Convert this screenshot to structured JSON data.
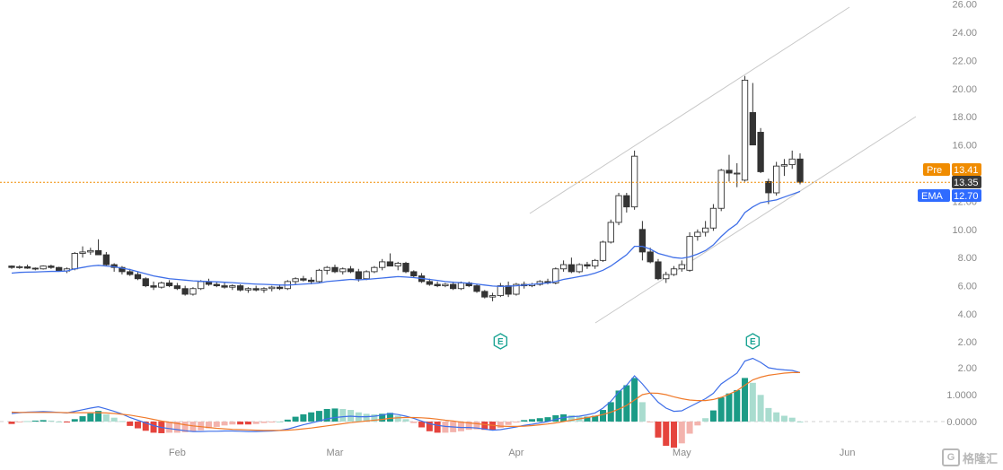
{
  "watermark": {
    "logo": "G",
    "text": "格隆汇"
  },
  "tags": {
    "pre": {
      "label": "Pre",
      "value": "13.41",
      "color": "#f08c00"
    },
    "last": {
      "value": "13.35",
      "color": "#3a3a3a"
    },
    "ema": {
      "label": "EMA",
      "value": "12.70",
      "color": "#2f6bff"
    }
  },
  "chart_data": [
    {
      "type": "candlestick",
      "title": "",
      "ylim": [
        2,
        26
      ],
      "y_ticks": [
        "4.00",
        "6.00",
        "8.00",
        "10.00",
        "12.00",
        "14.00",
        "16.00",
        "18.00",
        "20.00",
        "22.00",
        "24.00",
        "26.00"
      ],
      "x_ticks": [
        {
          "label": "Feb",
          "index": 21
        },
        {
          "label": "Mar",
          "index": 41
        },
        {
          "label": "Apr",
          "index": 64
        },
        {
          "label": "May",
          "index": 85
        },
        {
          "label": "Jun",
          "index": 106
        }
      ],
      "price_line": 13.35,
      "earnings_markers": [
        {
          "index": 62,
          "label": "E"
        },
        {
          "index": 94,
          "label": "E"
        }
      ],
      "ohlc": [
        [
          7.4,
          7.45,
          7.2,
          7.3
        ],
        [
          7.3,
          7.45,
          7.2,
          7.35
        ],
        [
          7.35,
          7.5,
          7.2,
          7.25
        ],
        [
          7.25,
          7.3,
          7.1,
          7.2
        ],
        [
          7.2,
          7.45,
          7.15,
          7.4
        ],
        [
          7.4,
          7.5,
          7.2,
          7.3
        ],
        [
          7.3,
          7.35,
          7.0,
          7.05
        ],
        [
          7.05,
          7.3,
          6.9,
          7.2
        ],
        [
          7.2,
          8.4,
          7.1,
          8.3
        ],
        [
          8.3,
          8.8,
          8.0,
          8.4
        ],
        [
          8.4,
          8.7,
          8.2,
          8.5
        ],
        [
          8.5,
          9.3,
          8.3,
          8.2
        ],
        [
          8.2,
          8.4,
          7.4,
          7.5
        ],
        [
          7.5,
          7.6,
          7.0,
          7.3
        ],
        [
          7.3,
          7.4,
          6.8,
          7.0
        ],
        [
          7.0,
          7.2,
          6.7,
          6.8
        ],
        [
          6.8,
          7.0,
          6.4,
          6.5
        ],
        [
          6.5,
          6.6,
          5.9,
          6.0
        ],
        [
          6.0,
          6.3,
          5.7,
          5.9
        ],
        [
          5.9,
          6.3,
          5.8,
          6.2
        ],
        [
          6.2,
          6.4,
          5.9,
          6.0
        ],
        [
          6.0,
          6.2,
          5.7,
          5.8
        ],
        [
          5.8,
          6.0,
          5.3,
          5.4
        ],
        [
          5.4,
          5.9,
          5.3,
          5.8
        ],
        [
          5.8,
          6.4,
          5.7,
          6.3
        ],
        [
          6.3,
          6.5,
          6.0,
          6.1
        ],
        [
          6.1,
          6.3,
          5.9,
          6.0
        ],
        [
          6.0,
          6.2,
          5.8,
          5.9
        ],
        [
          5.9,
          6.1,
          5.7,
          6.0
        ],
        [
          6.0,
          6.1,
          5.6,
          5.7
        ],
        [
          5.7,
          5.9,
          5.5,
          5.8
        ],
        [
          5.8,
          6.0,
          5.6,
          5.7
        ],
        [
          5.7,
          5.9,
          5.5,
          5.8
        ],
        [
          5.8,
          6.0,
          5.6,
          5.9
        ],
        [
          5.9,
          6.1,
          5.7,
          5.8
        ],
        [
          5.8,
          6.4,
          5.7,
          6.3
        ],
        [
          6.3,
          6.6,
          6.1,
          6.5
        ],
        [
          6.5,
          6.7,
          6.3,
          6.4
        ],
        [
          6.4,
          6.6,
          6.1,
          6.3
        ],
        [
          6.3,
          7.2,
          6.2,
          7.1
        ],
        [
          7.1,
          7.4,
          6.8,
          7.3
        ],
        [
          7.3,
          7.5,
          6.9,
          7.0
        ],
        [
          7.0,
          7.3,
          6.8,
          7.2
        ],
        [
          7.2,
          7.4,
          6.9,
          7.0
        ],
        [
          7.0,
          7.2,
          6.3,
          6.5
        ],
        [
          6.5,
          7.1,
          6.4,
          7.0
        ],
        [
          7.0,
          7.4,
          6.9,
          7.3
        ],
        [
          7.3,
          7.9,
          7.1,
          7.7
        ],
        [
          7.7,
          8.3,
          7.5,
          7.4
        ],
        [
          7.4,
          7.7,
          7.1,
          7.6
        ],
        [
          7.6,
          7.7,
          6.9,
          7.0
        ],
        [
          7.0,
          7.1,
          6.6,
          6.7
        ],
        [
          6.7,
          6.9,
          6.2,
          6.3
        ],
        [
          6.3,
          6.5,
          6.0,
          6.1
        ],
        [
          6.1,
          6.3,
          5.9,
          6.0
        ],
        [
          6.0,
          6.2,
          5.9,
          6.1
        ],
        [
          6.1,
          6.3,
          5.7,
          5.8
        ],
        [
          5.8,
          6.3,
          5.7,
          6.2
        ],
        [
          6.2,
          6.3,
          5.9,
          6.0
        ],
        [
          6.0,
          6.1,
          5.5,
          5.6
        ],
        [
          5.6,
          5.7,
          5.1,
          5.2
        ],
        [
          5.2,
          5.5,
          4.9,
          5.3
        ],
        [
          5.3,
          6.2,
          5.2,
          6.0
        ],
        [
          6.0,
          6.3,
          5.2,
          5.4
        ],
        [
          5.4,
          6.2,
          5.3,
          6.1
        ],
        [
          6.1,
          6.3,
          5.8,
          6.0
        ],
        [
          6.0,
          6.2,
          5.9,
          6.1
        ],
        [
          6.1,
          6.4,
          6.0,
          6.3
        ],
        [
          6.3,
          6.5,
          6.1,
          6.2
        ],
        [
          6.2,
          7.3,
          6.1,
          7.2
        ],
        [
          7.2,
          7.8,
          7.0,
          7.5
        ],
        [
          7.5,
          8.0,
          6.9,
          7.0
        ],
        [
          7.0,
          7.6,
          6.9,
          7.5
        ],
        [
          7.5,
          7.7,
          7.2,
          7.4
        ],
        [
          7.4,
          7.9,
          7.2,
          7.8
        ],
        [
          7.8,
          9.2,
          7.7,
          9.1
        ],
        [
          9.1,
          10.7,
          9.0,
          10.5
        ],
        [
          10.5,
          12.6,
          10.3,
          12.4
        ],
        [
          12.4,
          12.6,
          11.2,
          11.6
        ],
        [
          11.6,
          15.6,
          11.4,
          15.2
        ],
        [
          10.0,
          10.6,
          7.8,
          8.4
        ],
        [
          8.4,
          8.7,
          7.6,
          7.7
        ],
        [
          7.7,
          7.9,
          6.4,
          6.5
        ],
        [
          6.5,
          7.0,
          6.2,
          6.8
        ],
        [
          6.8,
          7.4,
          6.7,
          7.2
        ],
        [
          7.2,
          7.8,
          7.0,
          7.5
        ],
        [
          7.1,
          9.8,
          7.0,
          9.5
        ],
        [
          9.5,
          10.0,
          9.2,
          9.8
        ],
        [
          9.8,
          10.6,
          9.5,
          10.1
        ],
        [
          10.1,
          11.8,
          9.9,
          11.5
        ],
        [
          11.5,
          14.3,
          11.3,
          14.2
        ],
        [
          14.2,
          15.3,
          13.4,
          14.0
        ],
        [
          14.0,
          14.7,
          13.0,
          14.0
        ],
        [
          13.5,
          20.9,
          13.4,
          20.6
        ],
        [
          18.3,
          20.4,
          16.0,
          16.0
        ],
        [
          16.9,
          17.2,
          14.0,
          14.1
        ],
        [
          13.4,
          13.6,
          11.8,
          12.6
        ],
        [
          12.6,
          14.8,
          12.4,
          14.5
        ],
        [
          14.5,
          15.0,
          13.8,
          14.6
        ],
        [
          14.6,
          15.6,
          14.3,
          15.0
        ],
        [
          15.0,
          15.4,
          13.2,
          13.35
        ]
      ],
      "ema": [
        6.9,
        6.95,
        6.97,
        6.98,
        7.0,
        7.02,
        7.02,
        7.05,
        7.2,
        7.3,
        7.4,
        7.45,
        7.4,
        7.35,
        7.25,
        7.15,
        7.0,
        6.85,
        6.7,
        6.6,
        6.5,
        6.45,
        6.4,
        6.35,
        6.32,
        6.3,
        6.28,
        6.25,
        6.22,
        6.18,
        6.15,
        6.12,
        6.1,
        6.08,
        6.05,
        6.05,
        6.08,
        6.12,
        6.15,
        6.2,
        6.3,
        6.35,
        6.4,
        6.45,
        6.42,
        6.45,
        6.5,
        6.55,
        6.6,
        6.65,
        6.62,
        6.58,
        6.52,
        6.45,
        6.38,
        6.3,
        6.25,
        6.22,
        6.18,
        6.12,
        6.05,
        5.98,
        5.95,
        5.97,
        6.0,
        6.05,
        6.1,
        6.15,
        6.2,
        6.3,
        6.45,
        6.55,
        6.65,
        6.75,
        6.9,
        7.1,
        7.4,
        7.8,
        8.2,
        8.8,
        8.8,
        8.6,
        8.3,
        8.15,
        8.0,
        7.95,
        8.05,
        8.25,
        8.5,
        8.9,
        9.5,
        10.0,
        10.4,
        11.2,
        11.6,
        11.9,
        12.0,
        12.1,
        12.3,
        12.5,
        12.7
      ]
    },
    {
      "type": "macd",
      "title": "",
      "ylim": [
        -0.5,
        2.8
      ],
      "y_ticks": [
        "0.0000",
        "1.0000",
        "2.00",
        "2.00"
      ],
      "macd": [
        0.3,
        0.33,
        0.35,
        0.36,
        0.37,
        0.36,
        0.34,
        0.32,
        0.38,
        0.44,
        0.5,
        0.55,
        0.47,
        0.38,
        0.28,
        0.15,
        0.05,
        -0.05,
        -0.15,
        -0.22,
        -0.26,
        -0.3,
        -0.34,
        -0.37,
        -0.37,
        -0.36,
        -0.36,
        -0.35,
        -0.35,
        -0.36,
        -0.37,
        -0.37,
        -0.36,
        -0.35,
        -0.33,
        -0.28,
        -0.2,
        -0.12,
        -0.05,
        0.02,
        0.1,
        0.15,
        0.18,
        0.2,
        0.18,
        0.18,
        0.2,
        0.24,
        0.3,
        0.26,
        0.2,
        0.12,
        0.02,
        -0.08,
        -0.14,
        -0.18,
        -0.2,
        -0.22,
        -0.22,
        -0.24,
        -0.28,
        -0.32,
        -0.3,
        -0.25,
        -0.2,
        -0.14,
        -0.1,
        -0.05,
        0.0,
        0.08,
        0.15,
        0.18,
        0.2,
        0.25,
        0.32,
        0.5,
        0.75,
        1.1,
        1.35,
        1.7,
        1.4,
        1.05,
        0.72,
        0.5,
        0.38,
        0.4,
        0.55,
        0.7,
        0.85,
        1.05,
        1.4,
        1.6,
        1.8,
        2.25,
        2.35,
        2.2,
        2.0,
        1.95,
        1.92,
        1.9,
        1.82
      ],
      "signal": [
        0.35,
        0.34,
        0.34,
        0.34,
        0.34,
        0.34,
        0.34,
        0.33,
        0.33,
        0.33,
        0.33,
        0.33,
        0.32,
        0.3,
        0.27,
        0.24,
        0.19,
        0.14,
        0.08,
        0.02,
        -0.03,
        -0.07,
        -0.12,
        -0.16,
        -0.19,
        -0.22,
        -0.25,
        -0.27,
        -0.29,
        -0.3,
        -0.31,
        -0.32,
        -0.33,
        -0.33,
        -0.33,
        -0.32,
        -0.3,
        -0.27,
        -0.24,
        -0.2,
        -0.16,
        -0.12,
        -0.08,
        -0.04,
        -0.01,
        0.02,
        0.05,
        0.08,
        0.12,
        0.14,
        0.15,
        0.15,
        0.14,
        0.12,
        0.09,
        0.05,
        0.02,
        -0.02,
        -0.05,
        -0.08,
        -0.11,
        -0.14,
        -0.17,
        -0.18,
        -0.18,
        -0.17,
        -0.15,
        -0.12,
        -0.09,
        -0.05,
        0.0,
        0.05,
        0.1,
        0.15,
        0.2,
        0.26,
        0.35,
        0.46,
        0.6,
        0.8,
        1.0,
        1.06,
        1.05,
        1.0,
        0.92,
        0.85,
        0.8,
        0.78,
        0.78,
        0.82,
        0.9,
        1.02,
        1.15,
        1.35,
        1.55,
        1.65,
        1.72,
        1.76,
        1.8,
        1.82,
        1.82
      ]
    }
  ]
}
